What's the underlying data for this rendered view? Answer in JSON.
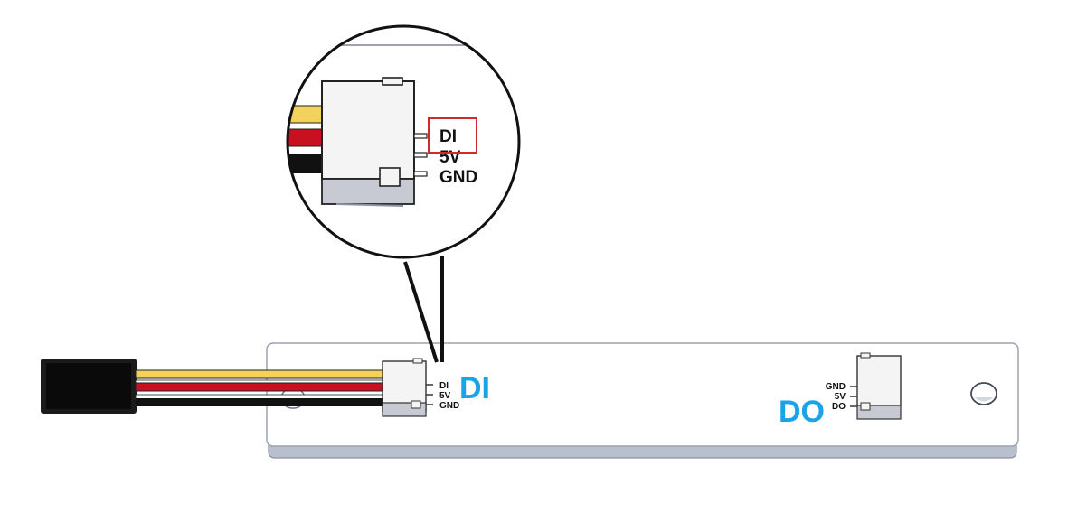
{
  "colors": {
    "wire_yellow": "#f2d25a",
    "wire_red": "#c8101e",
    "wire_black": "#111111",
    "accent_blue": "#1aa3e8",
    "highlight_red": "#d02a2a",
    "board_fill": "#ffffff",
    "board_edge": "#9aa3b4",
    "connector_fill": "#f4f4f4",
    "connector_shade": "#c7cad3"
  },
  "icons": {
    "plug": "plug-icon",
    "mount_hole": "mount-hole-icon",
    "magnifier": "magnifier-circle"
  },
  "input_connector": {
    "pins": [
      "DI",
      "5V",
      "GND"
    ],
    "big_label": "DI"
  },
  "output_connector": {
    "pins": [
      "GND",
      "5V",
      "DO"
    ],
    "big_label": "DO"
  },
  "zoom": {
    "pins": [
      "DI",
      "5V",
      "GND"
    ],
    "highlighted_pin": "DI"
  }
}
